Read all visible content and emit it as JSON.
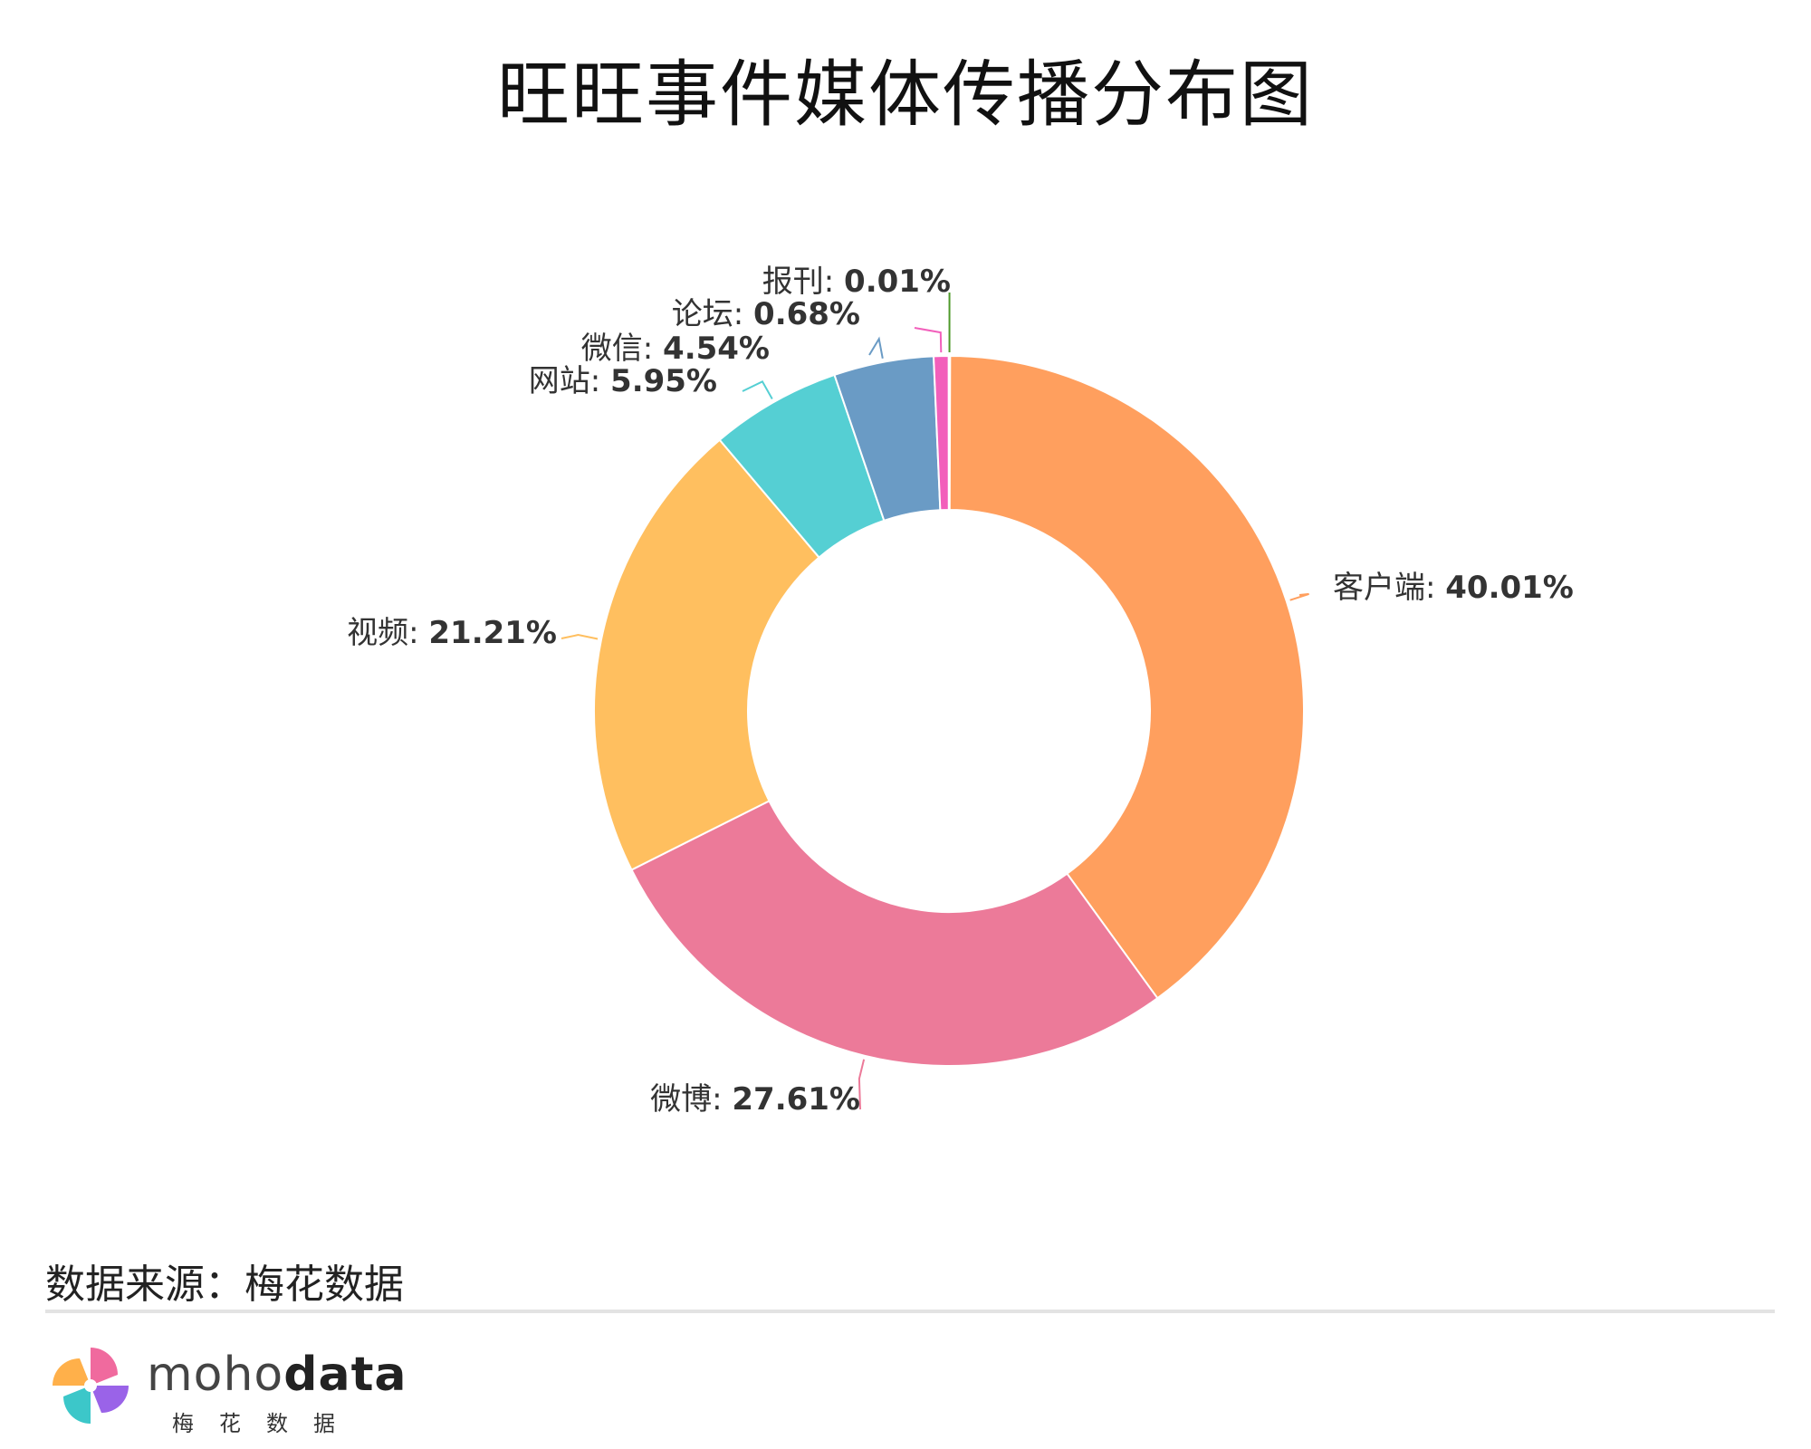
{
  "chart_data": {
    "type": "pie",
    "subtype": "donut",
    "title": "旺旺事件媒体传播分布图",
    "slices": [
      {
        "label": "客户端",
        "value": 40.01,
        "display": "40.01%",
        "color": "#FF9F5E"
      },
      {
        "label": "微博",
        "value": 27.61,
        "display": "27.61%",
        "color": "#EC7A99"
      },
      {
        "label": "视频",
        "value": 21.21,
        "display": "21.21%",
        "color": "#FFBF5F"
      },
      {
        "label": "网站",
        "value": 5.95,
        "display": "5.95%",
        "color": "#55CFD3"
      },
      {
        "label": "微信",
        "value": 4.54,
        "display": "4.54%",
        "color": "#6A9BC5"
      },
      {
        "label": "论坛",
        "value": 0.68,
        "display": "0.68%",
        "color": "#F25FBB"
      },
      {
        "label": "报刊",
        "value": 0.01,
        "display": "0.01%",
        "color": "#4E9A2A"
      }
    ]
  },
  "footer": {
    "source": "数据来源：梅花数据",
    "brand_light": "moho",
    "brand_bold": "data",
    "brand_sub": "梅花数据"
  }
}
